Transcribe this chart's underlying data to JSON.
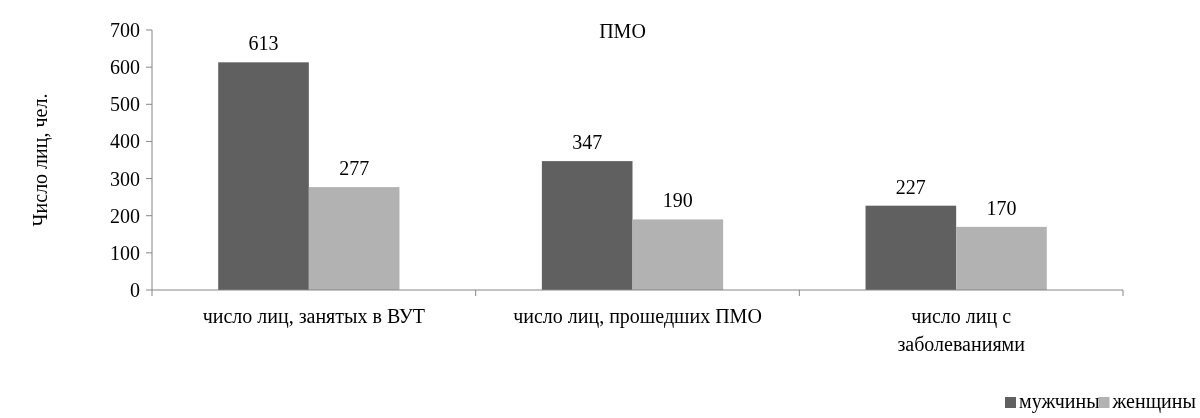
{
  "chart_data": {
    "type": "bar",
    "title": "ПМО",
    "ylabel": "Число лиц, чел.",
    "categories": [
      "число лиц, занятых в ВУТ",
      "число лиц, прошедших ПМО",
      "число лиц с заболеваниями"
    ],
    "series": [
      {
        "name": "мужчины",
        "color": "#606060",
        "values": [
          613,
          347,
          227
        ]
      },
      {
        "name": "женщины",
        "color": "#b2b2b2",
        "values": [
          277,
          190,
          170
        ]
      }
    ],
    "ylim": [
      0,
      700
    ],
    "yticks": [
      0,
      100,
      200,
      300,
      400,
      500,
      600,
      700
    ],
    "grid": false,
    "data_labels": true,
    "legend": "bottom right"
  }
}
